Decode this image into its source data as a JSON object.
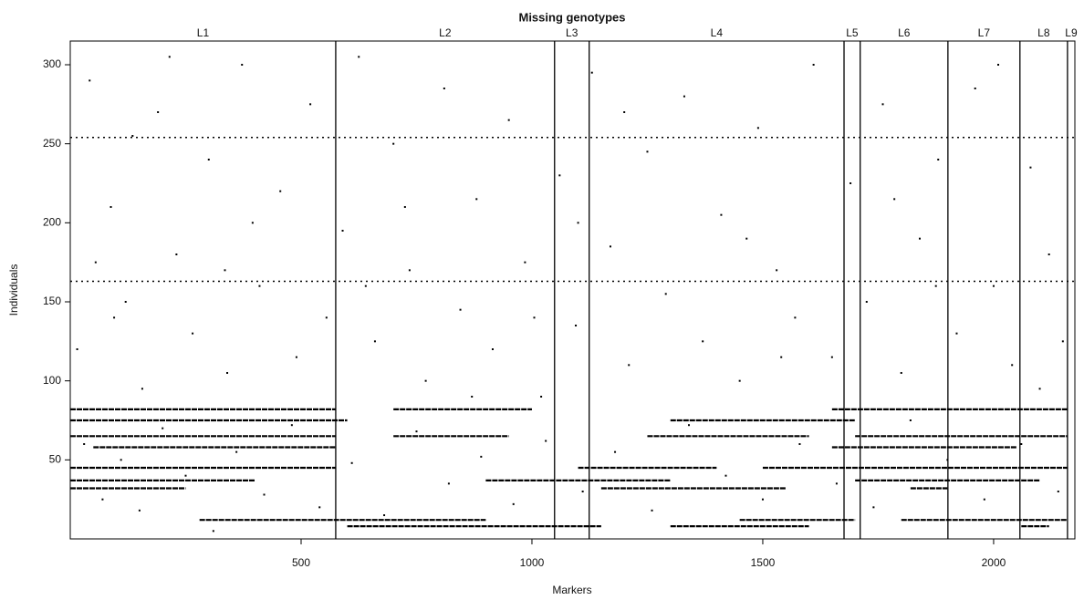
{
  "chart_data": {
    "type": "missing-map",
    "title": "Missing genotypes",
    "xlabel": "Markers",
    "ylabel": "Individuals",
    "xlim": [
      0,
      2176
    ],
    "ylim": [
      0,
      315
    ],
    "xticks": [
      500,
      1000,
      1500,
      2000
    ],
    "yticks": [
      50,
      100,
      150,
      200,
      250,
      300
    ],
    "groups": [
      "L1",
      "L2",
      "L3",
      "L4",
      "L5",
      "L6",
      "L7",
      "L8",
      "L9"
    ],
    "boundaries": [
      575,
      1049,
      1124,
      1676,
      1711,
      1901,
      2057,
      2160
    ],
    "color": "#000000",
    "dotted_rows": [
      254,
      163
    ],
    "segments": [
      {
        "individual": 82,
        "start": 0,
        "end": 575
      },
      {
        "individual": 82,
        "start": 700,
        "end": 1000
      },
      {
        "individual": 82,
        "start": 1650,
        "end": 2160
      },
      {
        "individual": 75,
        "start": 0,
        "end": 600
      },
      {
        "individual": 75,
        "start": 1300,
        "end": 1700
      },
      {
        "individual": 65,
        "start": 0,
        "end": 575
      },
      {
        "individual": 65,
        "start": 700,
        "end": 950
      },
      {
        "individual": 65,
        "start": 1250,
        "end": 1600
      },
      {
        "individual": 65,
        "start": 1700,
        "end": 2160
      },
      {
        "individual": 58,
        "start": 50,
        "end": 575
      },
      {
        "individual": 58,
        "start": 1650,
        "end": 2050
      },
      {
        "individual": 45,
        "start": 0,
        "end": 575
      },
      {
        "individual": 45,
        "start": 1100,
        "end": 1400
      },
      {
        "individual": 45,
        "start": 1500,
        "end": 2160
      },
      {
        "individual": 37,
        "start": 0,
        "end": 400
      },
      {
        "individual": 37,
        "start": 900,
        "end": 1300
      },
      {
        "individual": 37,
        "start": 1700,
        "end": 2100
      },
      {
        "individual": 32,
        "start": 0,
        "end": 250
      },
      {
        "individual": 32,
        "start": 1150,
        "end": 1550
      },
      {
        "individual": 32,
        "start": 1820,
        "end": 1900
      },
      {
        "individual": 12,
        "start": 280,
        "end": 900
      },
      {
        "individual": 12,
        "start": 1450,
        "end": 1700
      },
      {
        "individual": 12,
        "start": 1800,
        "end": 2160
      },
      {
        "individual": 8,
        "start": 600,
        "end": 1150
      },
      {
        "individual": 8,
        "start": 1300,
        "end": 1600
      },
      {
        "individual": 8,
        "start": 2060,
        "end": 2120
      }
    ],
    "points": [
      [
        15,
        120
      ],
      [
        42,
        290
      ],
      [
        88,
        210
      ],
      [
        120,
        150
      ],
      [
        156,
        95
      ],
      [
        190,
        270
      ],
      [
        230,
        180
      ],
      [
        265,
        130
      ],
      [
        300,
        240
      ],
      [
        340,
        105
      ],
      [
        372,
        300
      ],
      [
        410,
        160
      ],
      [
        455,
        220
      ],
      [
        490,
        115
      ],
      [
        520,
        275
      ],
      [
        555,
        140
      ],
      [
        590,
        195
      ],
      [
        625,
        305
      ],
      [
        660,
        125
      ],
      [
        700,
        250
      ],
      [
        735,
        170
      ],
      [
        770,
        100
      ],
      [
        810,
        285
      ],
      [
        845,
        145
      ],
      [
        880,
        215
      ],
      [
        915,
        120
      ],
      [
        950,
        265
      ],
      [
        985,
        175
      ],
      [
        1020,
        90
      ],
      [
        1060,
        230
      ],
      [
        1095,
        135
      ],
      [
        1130,
        295
      ],
      [
        1170,
        185
      ],
      [
        1210,
        110
      ],
      [
        1250,
        245
      ],
      [
        1290,
        155
      ],
      [
        1330,
        280
      ],
      [
        1370,
        125
      ],
      [
        1410,
        205
      ],
      [
        1450,
        100
      ],
      [
        1490,
        260
      ],
      [
        1530,
        170
      ],
      [
        1570,
        140
      ],
      [
        1610,
        300
      ],
      [
        1650,
        115
      ],
      [
        1690,
        225
      ],
      [
        1725,
        150
      ],
      [
        1760,
        275
      ],
      [
        1800,
        105
      ],
      [
        1840,
        190
      ],
      [
        1880,
        240
      ],
      [
        1920,
        130
      ],
      [
        1960,
        285
      ],
      [
        2000,
        160
      ],
      [
        2040,
        110
      ],
      [
        2080,
        235
      ],
      [
        2120,
        180
      ],
      [
        2150,
        125
      ],
      [
        30,
        60
      ],
      [
        70,
        25
      ],
      [
        110,
        50
      ],
      [
        150,
        18
      ],
      [
        200,
        70
      ],
      [
        250,
        40
      ],
      [
        310,
        5
      ],
      [
        360,
        55
      ],
      [
        420,
        28
      ],
      [
        480,
        72
      ],
      [
        540,
        20
      ],
      [
        610,
        48
      ],
      [
        680,
        15
      ],
      [
        750,
        68
      ],
      [
        820,
        35
      ],
      [
        890,
        52
      ],
      [
        960,
        22
      ],
      [
        1030,
        62
      ],
      [
        1110,
        30
      ],
      [
        1180,
        55
      ],
      [
        1260,
        18
      ],
      [
        1340,
        72
      ],
      [
        1420,
        40
      ],
      [
        1500,
        25
      ],
      [
        1580,
        60
      ],
      [
        1660,
        35
      ],
      [
        1740,
        20
      ],
      [
        1820,
        75
      ],
      [
        1900,
        50
      ],
      [
        1980,
        25
      ],
      [
        2060,
        60
      ],
      [
        2140,
        30
      ],
      [
        55,
        175
      ],
      [
        135,
        255
      ],
      [
        215,
        305
      ],
      [
        395,
        200
      ],
      [
        640,
        160
      ],
      [
        725,
        210
      ],
      [
        1005,
        140
      ],
      [
        1200,
        270
      ],
      [
        1465,
        190
      ],
      [
        1785,
        215
      ],
      [
        2010,
        300
      ],
      [
        2100,
        95
      ],
      [
        95,
        140
      ],
      [
        335,
        170
      ],
      [
        870,
        90
      ],
      [
        1540,
        115
      ],
      [
        1875,
        160
      ],
      [
        1100,
        200
      ]
    ]
  }
}
